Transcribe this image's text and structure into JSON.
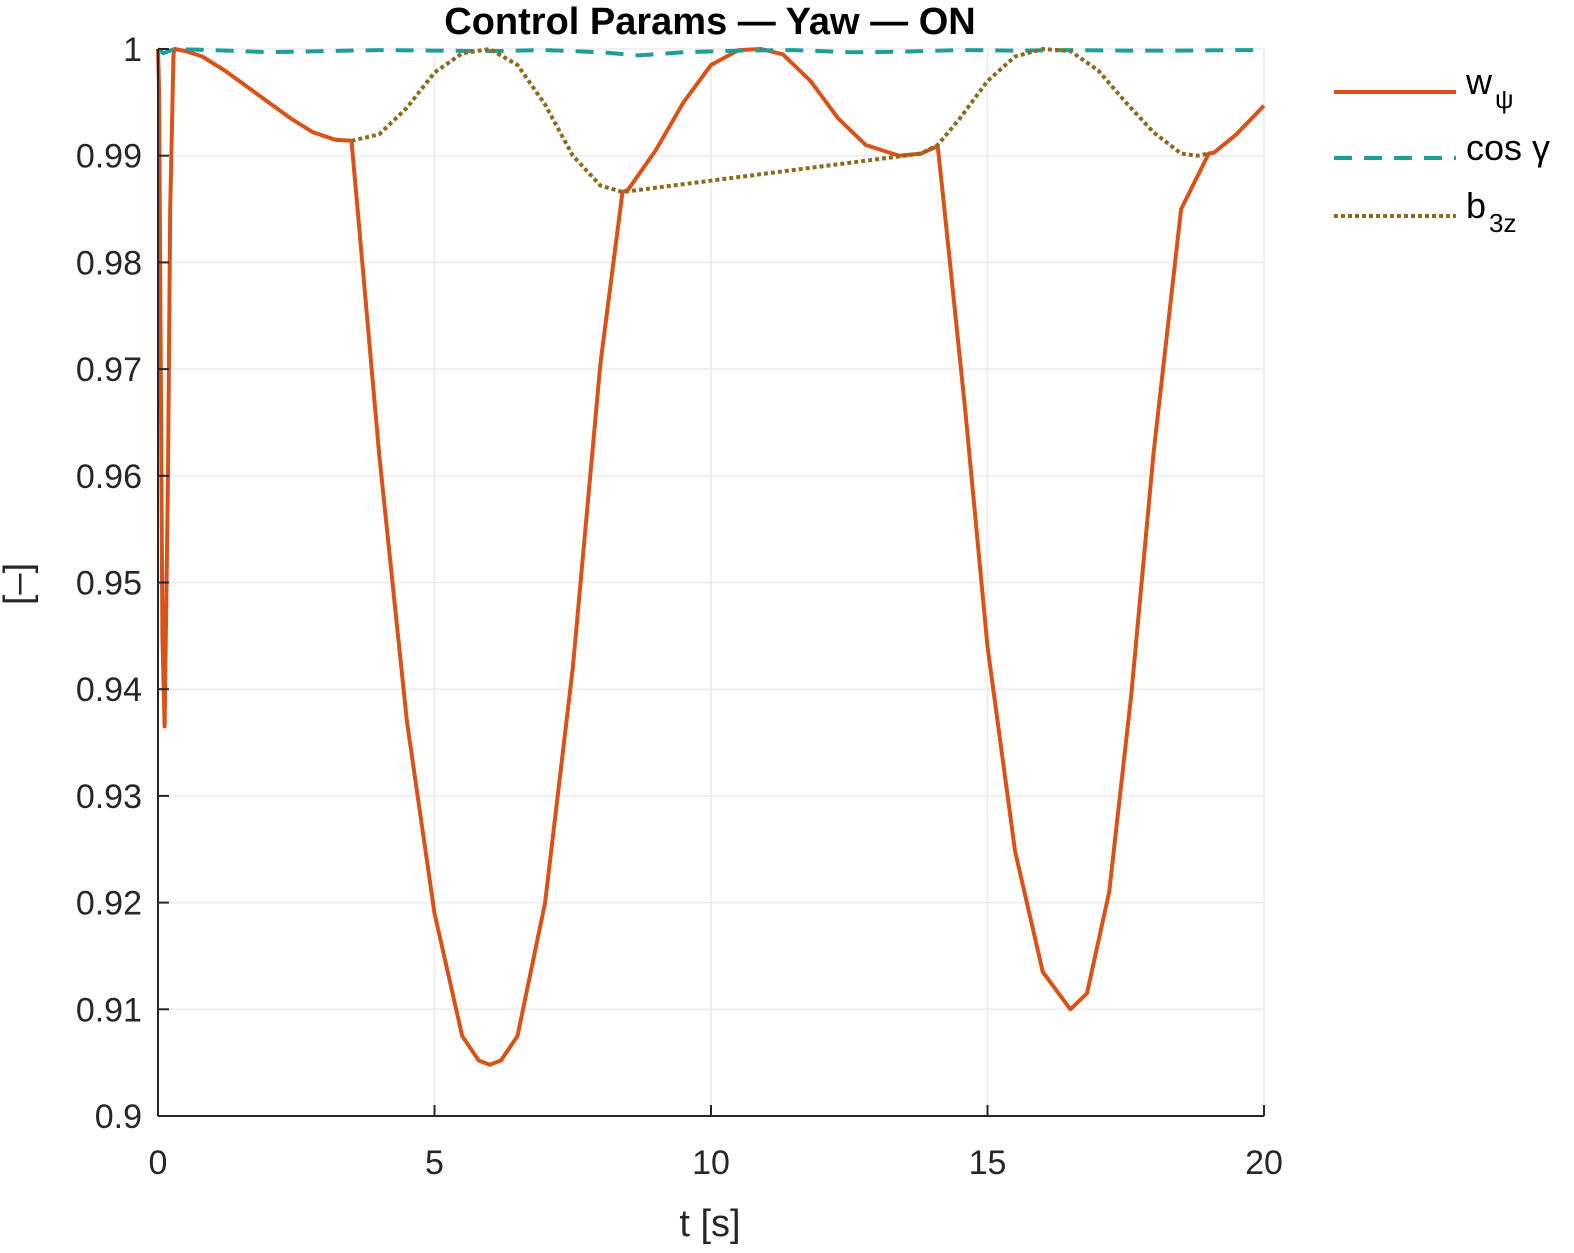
{
  "chart_data": {
    "type": "line",
    "title": "Control Params — Yaw — ON",
    "xlabel": "t [s]",
    "ylabel": "[–]",
    "xlim": [
      0,
      20
    ],
    "ylim": [
      0.9,
      1.0
    ],
    "xticks": [
      0,
      5,
      10,
      15,
      20
    ],
    "xtick_labels": [
      "0",
      "5",
      "10",
      "15",
      "20"
    ],
    "yticks": [
      0.9,
      0.91,
      0.92,
      0.93,
      0.94,
      0.95,
      0.96,
      0.97,
      0.98,
      0.99,
      1.0
    ],
    "ytick_labels": [
      "0.9",
      "0.91",
      "0.92",
      "0.93",
      "0.94",
      "0.95",
      "0.96",
      "0.97",
      "0.98",
      "0.99",
      "1"
    ],
    "grid": true,
    "legend_position": "outside-right",
    "series": [
      {
        "name": "w_ψ",
        "legend_main": "w",
        "legend_sub": "ψ",
        "color": "#D95319",
        "style": "solid",
        "x": [
          0.0,
          0.02,
          0.05,
          0.08,
          0.12,
          0.18,
          0.22,
          0.28,
          0.3,
          0.5,
          0.8,
          1.2,
          1.6,
          2.0,
          2.4,
          2.8,
          3.2,
          3.5,
          3.6,
          4.0,
          4.5,
          5.0,
          5.5,
          5.8,
          6.0,
          6.2,
          6.5,
          7.0,
          7.5,
          8.0,
          8.4,
          8.5,
          9.0,
          9.5,
          10.0,
          10.5,
          10.9,
          11.3,
          11.8,
          12.3,
          12.8,
          13.4,
          13.8,
          14.1,
          14.2,
          14.6,
          15.0,
          15.5,
          16.0,
          16.5,
          16.8,
          17.2,
          17.6,
          18.0,
          18.5,
          19.0,
          19.1,
          19.5,
          20.0
        ],
        "y": [
          1.0,
          0.996,
          0.97,
          0.945,
          0.9365,
          0.96,
          0.985,
          0.9995,
          1.0,
          0.9998,
          0.9993,
          0.998,
          0.9965,
          0.995,
          0.9935,
          0.9922,
          0.9915,
          0.9914,
          0.9855,
          0.962,
          0.937,
          0.919,
          0.9075,
          0.9052,
          0.9048,
          0.9052,
          0.9075,
          0.92,
          0.942,
          0.9705,
          0.9866,
          0.9868,
          0.9905,
          0.995,
          0.9985,
          0.9999,
          1.0,
          0.9995,
          0.997,
          0.9935,
          0.991,
          0.99,
          0.9902,
          0.9909,
          0.986,
          0.966,
          0.944,
          0.9248,
          0.9135,
          0.91,
          0.9115,
          0.921,
          0.9395,
          0.962,
          0.985,
          0.9902,
          0.9903,
          0.992,
          0.9947
        ]
      },
      {
        "name": "cos γ",
        "legend_main": "cos γ",
        "legend_sub": "",
        "color": "#1F9E97",
        "style": "dashed",
        "x": [
          0.0,
          0.1,
          0.3,
          0.6,
          1.0,
          2.0,
          3.0,
          4.0,
          5.0,
          6.0,
          7.0,
          8.0,
          8.7,
          9.5,
          10.5,
          11.5,
          12.5,
          13.5,
          14.5,
          15.5,
          16.5,
          17.5,
          18.5,
          19.5,
          20.0
        ],
        "y": [
          1.0,
          0.9996,
          1.0,
          0.99995,
          0.9999,
          0.9997,
          0.9998,
          0.9999,
          0.99985,
          0.9998,
          0.9999,
          0.9997,
          0.9994,
          0.9997,
          0.99985,
          0.9999,
          0.9997,
          0.99975,
          0.9999,
          0.99985,
          0.9999,
          0.99985,
          0.99985,
          0.9999,
          0.9999
        ]
      },
      {
        "name": "b_3z",
        "legend_main": "b",
        "legend_sub": "3z",
        "color": "#8C6B1F",
        "style": "dotted",
        "x": [
          3.5,
          4.0,
          4.5,
          5.0,
          5.5,
          6.0,
          6.5,
          7.0,
          7.5,
          8.0,
          8.4,
          13.8,
          14.1,
          14.5,
          15.0,
          15.5,
          16.0,
          16.5,
          17.0,
          17.5,
          18.0,
          18.5,
          18.8,
          19.0
        ],
        "y": [
          0.9914,
          0.992,
          0.9945,
          0.9978,
          0.9996,
          1.0,
          0.9985,
          0.9948,
          0.99,
          0.9872,
          0.9866,
          0.9902,
          0.991,
          0.9935,
          0.997,
          0.9993,
          1.0,
          0.9998,
          0.998,
          0.995,
          0.9922,
          0.9902,
          0.99,
          0.9902
        ]
      }
    ]
  }
}
